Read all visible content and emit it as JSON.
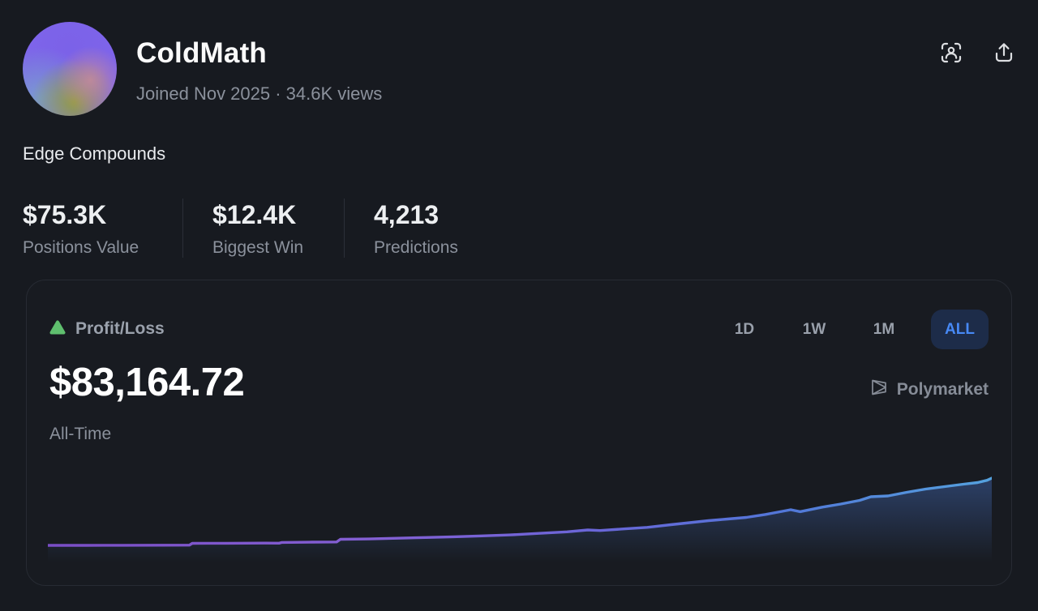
{
  "profile": {
    "name": "ColdMath",
    "meta": "Joined Nov 2025 · 34.6K views",
    "bio": "Edge Compounds"
  },
  "header_actions": {
    "scan_icon": "person-scan",
    "share_icon": "share-upload"
  },
  "stats": [
    {
      "value": "$75.3K",
      "label": "Positions Value"
    },
    {
      "value": "$12.4K",
      "label": "Biggest Win"
    },
    {
      "value": "4,213",
      "label": "Predictions"
    }
  ],
  "pnl_card": {
    "indicator": "up-triangle",
    "label": "Profit/Loss",
    "value": "$83,164.72",
    "period_label": "All-Time",
    "watermark": "Polymarket",
    "timeframes": [
      {
        "label": "1D",
        "active": false
      },
      {
        "label": "1W",
        "active": false
      },
      {
        "label": "1M",
        "active": false
      },
      {
        "label": "ALL",
        "active": true
      }
    ]
  },
  "colors": {
    "positive_green": "#5fbf6e",
    "accent_blue": "#4789f5",
    "active_tab_bg": "#1d2c49",
    "muted_text": "#8b919c",
    "card_border": "#272b33",
    "background": "#171a20"
  },
  "chart_data": {
    "type": "area",
    "title": "Profit/Loss All-Time",
    "xlabel": "",
    "ylabel": "Profit/Loss (USD)",
    "x_unit": "fraction_of_period",
    "ylim": [
      0,
      90000
    ],
    "final_value": 83164.72,
    "grid": false,
    "legend": "none",
    "line_gradient": [
      "#7a4ec6",
      "#8460d4",
      "#6a66d8",
      "#5277d8",
      "#55a2de"
    ],
    "fill_top": "rgba(69,110,190,0.40)",
    "fill_bottom": "rgba(69,110,190,0)",
    "points": [
      [
        0.0,
        3800
      ],
      [
        0.04,
        3850
      ],
      [
        0.08,
        3950
      ],
      [
        0.12,
        4050
      ],
      [
        0.15,
        4150
      ],
      [
        0.153,
        6200
      ],
      [
        0.19,
        6300
      ],
      [
        0.23,
        6500
      ],
      [
        0.245,
        6400
      ],
      [
        0.248,
        7300
      ],
      [
        0.28,
        7600
      ],
      [
        0.306,
        7800
      ],
      [
        0.31,
        11000
      ],
      [
        0.34,
        11400
      ],
      [
        0.37,
        12200
      ],
      [
        0.4,
        13100
      ],
      [
        0.43,
        14000
      ],
      [
        0.46,
        15000
      ],
      [
        0.49,
        16200
      ],
      [
        0.52,
        18000
      ],
      [
        0.55,
        19800
      ],
      [
        0.572,
        22000
      ],
      [
        0.585,
        21300
      ],
      [
        0.61,
        23200
      ],
      [
        0.635,
        25000
      ],
      [
        0.66,
        28200
      ],
      [
        0.68,
        30600
      ],
      [
        0.7,
        33000
      ],
      [
        0.72,
        34900
      ],
      [
        0.74,
        36800
      ],
      [
        0.76,
        40200
      ],
      [
        0.778,
        44000
      ],
      [
        0.787,
        45900
      ],
      [
        0.797,
        43600
      ],
      [
        0.82,
        48800
      ],
      [
        0.84,
        52600
      ],
      [
        0.86,
        56900
      ],
      [
        0.872,
        61200
      ],
      [
        0.89,
        62100
      ],
      [
        0.91,
        66400
      ],
      [
        0.93,
        70300
      ],
      [
        0.95,
        73100
      ],
      [
        0.97,
        76000
      ],
      [
        0.985,
        77900
      ],
      [
        0.995,
        80600
      ],
      [
        1.0,
        83164.72
      ]
    ]
  }
}
